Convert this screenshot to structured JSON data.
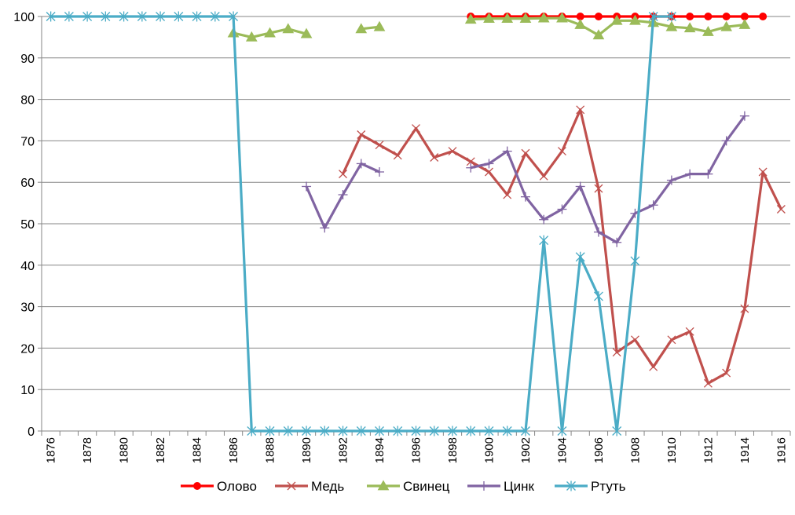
{
  "chart_data": {
    "type": "line",
    "title": "",
    "xlabel": "",
    "ylabel": "",
    "ylim": [
      0,
      100
    ],
    "yticks": [
      0,
      10,
      20,
      30,
      40,
      50,
      60,
      70,
      80,
      90,
      100
    ],
    "xlim": [
      1876,
      1916
    ],
    "x_tick_labels": [
      "1876",
      "1878",
      "1880",
      "1882",
      "1884",
      "1886",
      "1888",
      "1890",
      "1892",
      "1894",
      "1896",
      "1898",
      "1900",
      "1902",
      "1904",
      "1906",
      "1908",
      "1910",
      "1912",
      "1914",
      "1916"
    ],
    "grid": "horizontal",
    "legend_position": "bottom",
    "series": [
      {
        "name": "Олово",
        "color": "#ff0000",
        "marker": "circle",
        "points": [
          [
            1899,
            100
          ],
          [
            1900,
            100
          ],
          [
            1901,
            100
          ],
          [
            1902,
            100
          ],
          [
            1903,
            100
          ],
          [
            1904,
            100
          ],
          [
            1905,
            100
          ],
          [
            1906,
            100
          ],
          [
            1907,
            100
          ],
          [
            1908,
            100
          ],
          [
            1909,
            100
          ],
          [
            1910,
            100
          ],
          [
            1911,
            100
          ],
          [
            1912,
            100
          ],
          [
            1913,
            100
          ],
          [
            1914,
            100
          ],
          [
            1915,
            100
          ]
        ]
      },
      {
        "name": "Медь",
        "color": "#c0504d",
        "marker": "x",
        "points": [
          [
            1892,
            62
          ],
          [
            1893,
            71.5
          ],
          [
            1894,
            69
          ],
          [
            1895,
            66.5
          ],
          [
            1896,
            73
          ],
          [
            1897,
            66
          ],
          [
            1898,
            67.5
          ],
          [
            1899,
            65
          ],
          [
            1900,
            62.5
          ],
          [
            1901,
            57
          ],
          [
            1902,
            67
          ],
          [
            1903,
            61.5
          ],
          [
            1904,
            67.5
          ],
          [
            1905,
            77.5
          ],
          [
            1906,
            58.5
          ],
          [
            1907,
            19
          ],
          [
            1908,
            22
          ],
          [
            1909,
            15.5
          ],
          [
            1910,
            22
          ],
          [
            1911,
            24
          ],
          [
            1912,
            11.5
          ],
          [
            1913,
            14
          ],
          [
            1914,
            29.5
          ],
          [
            1915,
            62.5
          ],
          [
            1916,
            53.5
          ]
        ]
      },
      {
        "name": "Свинец",
        "color": "#9bbb59",
        "marker": "triangle",
        "segments": [
          [
            [
              1886,
              96
            ],
            [
              1887,
              95
            ],
            [
              1888,
              96
            ],
            [
              1889,
              97
            ],
            [
              1890,
              95.8
            ]
          ],
          [
            [
              1893,
              97
            ],
            [
              1894,
              97.5
            ]
          ],
          [
            [
              1899,
              99.3
            ],
            [
              1900,
              99.5
            ],
            [
              1901,
              99.5
            ],
            [
              1902,
              99.5
            ],
            [
              1903,
              99.6
            ],
            [
              1904,
              99.6
            ],
            [
              1905,
              98
            ],
            [
              1906,
              95.5
            ],
            [
              1907,
              99
            ],
            [
              1908,
              99
            ],
            [
              1909,
              98.5
            ],
            [
              1910,
              97.5
            ],
            [
              1911,
              97.2
            ],
            [
              1912,
              96.3
            ],
            [
              1913,
              97.5
            ],
            [
              1914,
              98
            ]
          ]
        ]
      },
      {
        "name": "Цинк",
        "color": "#8064a2",
        "marker": "plus",
        "segments": [
          [
            [
              1890,
              59
            ],
            [
              1891,
              49
            ],
            [
              1892,
              57
            ],
            [
              1893,
              64.5
            ],
            [
              1894,
              62.5
            ]
          ],
          [
            [
              1899,
              63.5
            ],
            [
              1900,
              64.5
            ],
            [
              1901,
              67.5
            ],
            [
              1902,
              56.5
            ],
            [
              1903,
              51
            ],
            [
              1904,
              53.5
            ],
            [
              1905,
              59
            ],
            [
              1906,
              48
            ],
            [
              1907,
              45.5
            ],
            [
              1908,
              52.5
            ],
            [
              1909,
              54.5
            ],
            [
              1910,
              60.5
            ],
            [
              1911,
              62
            ],
            [
              1912,
              62
            ],
            [
              1913,
              70
            ],
            [
              1914,
              76
            ]
          ]
        ]
      },
      {
        "name": "Ртуть",
        "color": "#4bacc6",
        "marker": "asterisk",
        "segments": [
          [
            [
              1876,
              100
            ],
            [
              1877,
              100
            ],
            [
              1878,
              100
            ],
            [
              1879,
              100
            ],
            [
              1880,
              100
            ],
            [
              1881,
              100
            ],
            [
              1882,
              100
            ],
            [
              1883,
              100
            ],
            [
              1884,
              100
            ],
            [
              1885,
              100
            ],
            [
              1886,
              100
            ],
            [
              1887,
              0
            ],
            [
              1888,
              0
            ],
            [
              1889,
              0
            ],
            [
              1890,
              0
            ],
            [
              1891,
              0
            ],
            [
              1892,
              0
            ],
            [
              1893,
              0
            ],
            [
              1894,
              0
            ],
            [
              1895,
              0
            ],
            [
              1896,
              0
            ],
            [
              1897,
              0
            ],
            [
              1898,
              0
            ],
            [
              1899,
              0
            ],
            [
              1900,
              0
            ],
            [
              1901,
              0
            ],
            [
              1902,
              0
            ],
            [
              1903,
              46
            ],
            [
              1904,
              0
            ],
            [
              1905,
              42
            ],
            [
              1906,
              32.5
            ],
            [
              1907,
              0
            ],
            [
              1908,
              41
            ],
            [
              1909,
              100
            ],
            [
              1910,
              100
            ]
          ]
        ]
      }
    ]
  }
}
